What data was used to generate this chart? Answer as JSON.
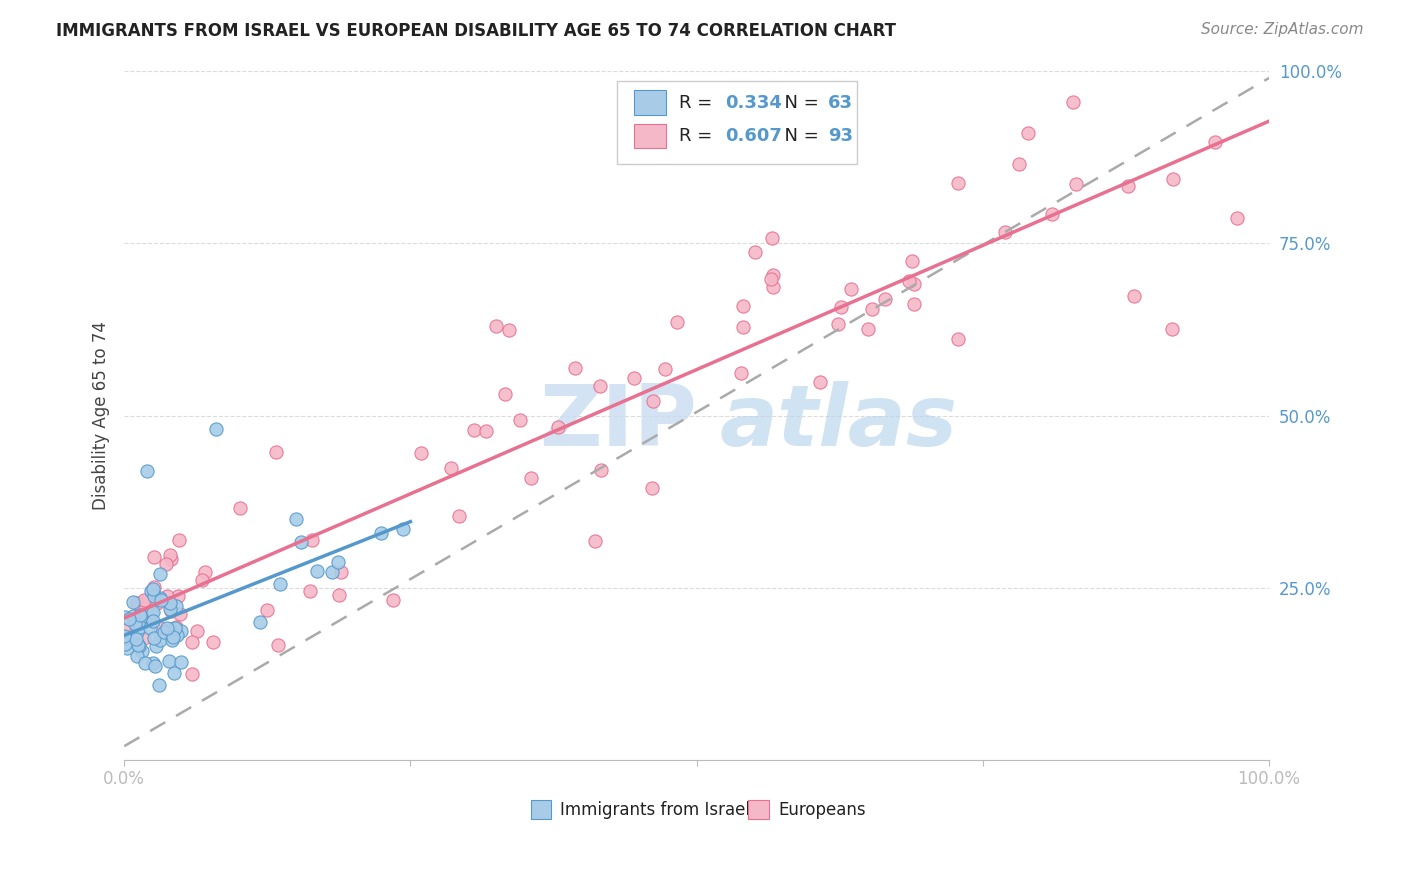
{
  "title": "IMMIGRANTS FROM ISRAEL VS EUROPEAN DISABILITY AGE 65 TO 74 CORRELATION CHART",
  "source": "Source: ZipAtlas.com",
  "ylabel": "Disability Age 65 to 74",
  "legend_label1": "Immigrants from Israel",
  "legend_label2": "Europeans",
  "R1": 0.334,
  "N1": 63,
  "R2": 0.607,
  "N2": 93,
  "color_israel_fill": "#A8CCE8",
  "color_israel_edge": "#5599CC",
  "color_euro_fill": "#F5B8C8",
  "color_euro_edge": "#E87090",
  "color_line_israel": "#5599CC",
  "color_line_euro": "#E87090",
  "color_trendline_dashed": "#AAAAAA",
  "watermark_color": "#C8DCF0",
  "xlim": [
    0.0,
    1.0
  ],
  "ylim": [
    0.0,
    1.0
  ],
  "xticks": [
    0.0,
    0.25,
    0.5,
    0.75,
    1.0
  ],
  "xticklabels": [
    "0.0%",
    "",
    "",
    "",
    "100.0%"
  ],
  "yticks": [
    0.0,
    0.25,
    0.5,
    0.75,
    1.0
  ],
  "yticklabels": [
    "",
    "25.0%",
    "50.0%",
    "75.0%",
    "100.0%"
  ],
  "tick_color": "#5599CC",
  "grid_color": "#CCCCCC",
  "title_fontsize": 12,
  "axis_fontsize": 12,
  "legend_fontsize": 13
}
